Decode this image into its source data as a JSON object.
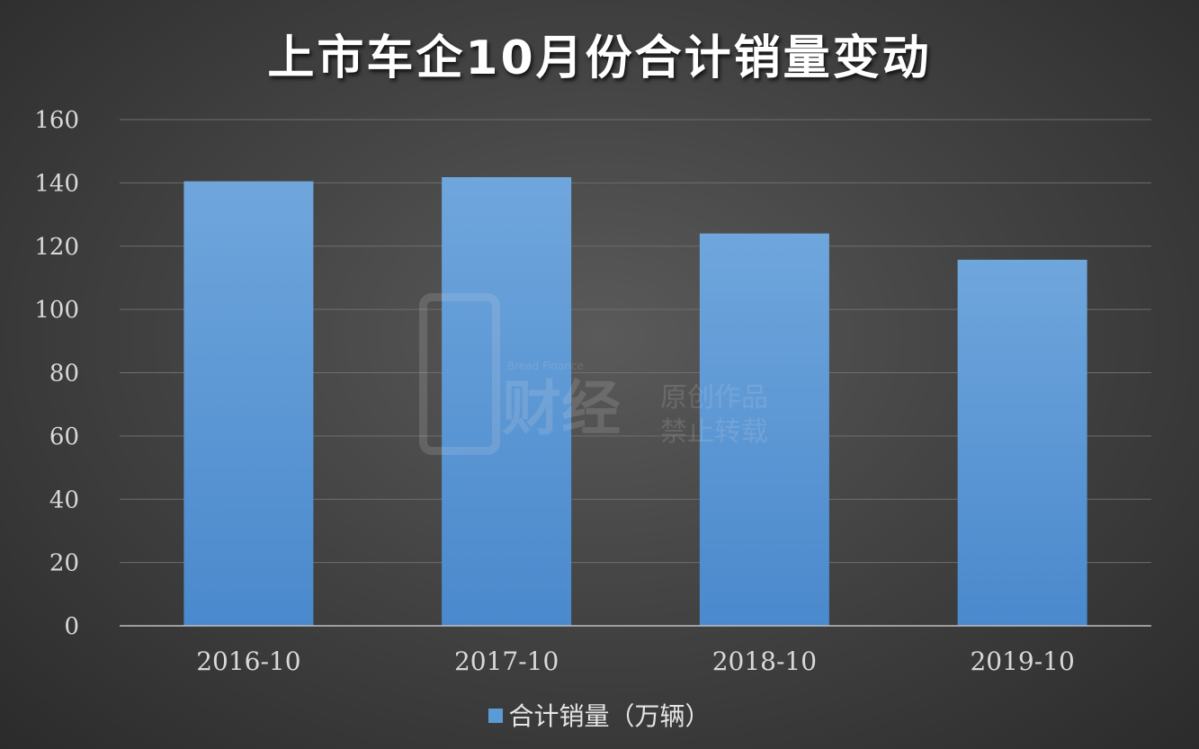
{
  "title": "上市车企10月份合计销量变动",
  "legend": {
    "label": "合计销量（万辆）"
  },
  "watermark": {
    "subtitle": "Bread Finance",
    "brand": "财经",
    "line1": "原创作品",
    "line2": "禁止转载"
  },
  "colors": {
    "bar": "#5b9bd5",
    "grid": "#6e6e6e",
    "axis": "#bfbfbf",
    "tick_text": "#d9d9d9"
  },
  "chart_data": {
    "type": "bar",
    "title": "上市车企10月份合计销量变动",
    "categories": [
      "2016-10",
      "2017-10",
      "2018-10",
      "2019-10"
    ],
    "series": [
      {
        "name": "合计销量（万辆）",
        "values": [
          140.5,
          141.8,
          124.0,
          115.7
        ]
      }
    ],
    "ylim": [
      0,
      160
    ],
    "yticks": [
      0,
      20,
      40,
      60,
      80,
      100,
      120,
      140,
      160
    ],
    "grid": true,
    "legend_position": "bottom"
  }
}
